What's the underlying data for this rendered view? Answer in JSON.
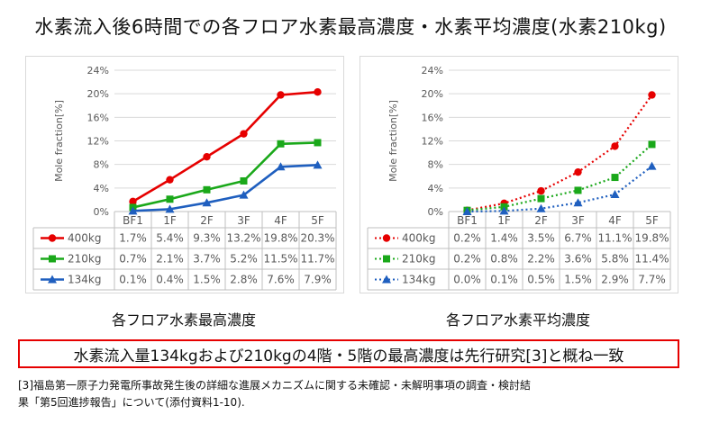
{
  "title": "水素流入後6時間での各フロア水素最高濃度・水素平均濃度(水素210kg)",
  "captions": {
    "left": "各フロア水素最高濃度",
    "right": "各フロア水素平均濃度"
  },
  "banner": "水素流入量134kgおよび210kgの4階・5階の最高濃度は先行研究[3]と概ね一致",
  "reference": {
    "line1": "[3]福島第一原子力発電所事故発生後の詳細な進展メカニズムに関する未確認・未解明事項の調査・検討結",
    "line2": "果「第5回進捗報告」について(添付資料1-10)."
  },
  "chart_data": [
    {
      "type": "line",
      "title": "",
      "ylabel": "Mole fraction[%]",
      "xlabel": "",
      "categories": [
        "BF1",
        "1F",
        "2F",
        "3F",
        "4F",
        "5F"
      ],
      "ylim": [
        0,
        24
      ],
      "yticks": [
        "0%",
        "4%",
        "8%",
        "12%",
        "16%",
        "20%",
        "24%"
      ],
      "grid": true,
      "line_style": "solid",
      "legend": "data-table",
      "series": [
        {
          "name": "400kg",
          "color": "#e60000",
          "marker": "circle",
          "values": [
            1.7,
            5.4,
            9.3,
            13.2,
            19.8,
            20.3
          ],
          "labels": [
            "1.7%",
            "5.4%",
            "9.3%",
            "13.2%",
            "19.8%",
            "20.3%"
          ]
        },
        {
          "name": "210kg",
          "color": "#1aa81a",
          "marker": "square",
          "values": [
            0.7,
            2.1,
            3.7,
            5.2,
            11.5,
            11.7
          ],
          "labels": [
            "0.7%",
            "2.1%",
            "3.7%",
            "5.2%",
            "11.5%",
            "11.7%"
          ]
        },
        {
          "name": "134kg",
          "color": "#1f5fbf",
          "marker": "triangle",
          "values": [
            0.1,
            0.4,
            1.5,
            2.8,
            7.6,
            7.9
          ],
          "labels": [
            "0.1%",
            "0.4%",
            "1.5%",
            "2.8%",
            "7.6%",
            "7.9%"
          ]
        }
      ]
    },
    {
      "type": "line",
      "title": "",
      "ylabel": "Mole fraction[%]",
      "xlabel": "",
      "categories": [
        "BF1",
        "1F",
        "2F",
        "3F",
        "4F",
        "5F"
      ],
      "ylim": [
        0,
        24
      ],
      "yticks": [
        "0%",
        "4%",
        "8%",
        "12%",
        "16%",
        "20%",
        "24%"
      ],
      "grid": true,
      "line_style": "dotted",
      "legend": "data-table",
      "series": [
        {
          "name": "400kg",
          "color": "#e60000",
          "marker": "circle",
          "values": [
            0.2,
            1.4,
            3.5,
            6.7,
            11.1,
            19.8
          ],
          "labels": [
            "0.2%",
            "1.4%",
            "3.5%",
            "6.7%",
            "11.1%",
            "19.8%"
          ]
        },
        {
          "name": "210kg",
          "color": "#1aa81a",
          "marker": "square",
          "values": [
            0.2,
            0.8,
            2.2,
            3.6,
            5.8,
            11.4
          ],
          "labels": [
            "0.2%",
            "0.8%",
            "2.2%",
            "3.6%",
            "5.8%",
            "11.4%"
          ]
        },
        {
          "name": "134kg",
          "color": "#1f5fbf",
          "marker": "triangle",
          "values": [
            0.0,
            0.1,
            0.5,
            1.5,
            2.9,
            7.7
          ],
          "labels": [
            "0.0%",
            "0.1%",
            "0.5%",
            "1.5%",
            "2.9%",
            "7.7%"
          ]
        }
      ]
    }
  ]
}
